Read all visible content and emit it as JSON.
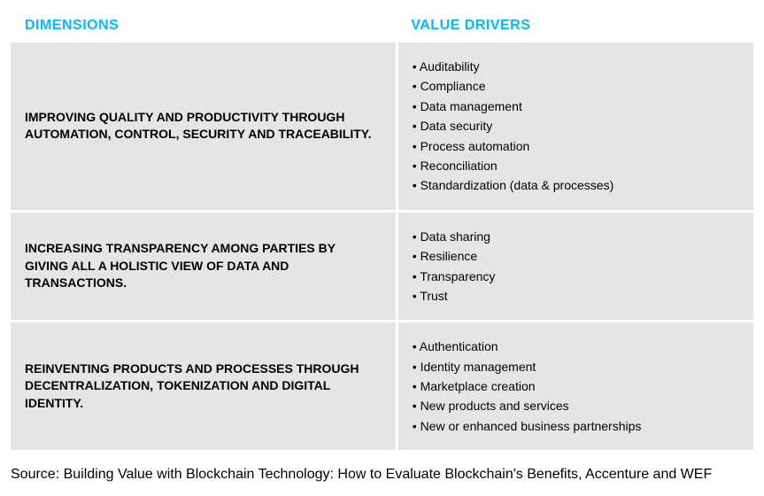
{
  "headers": {
    "col1": "DIMENSIONS",
    "col2": "VALUE DRIVERS",
    "header_color": "#00baff",
    "header_fontsize": 16
  },
  "rows": [
    {
      "dimension": "IMPROVING QUALITY AND PRODUCTIVITY THROUGH AUTOMATION, CONTROL, SECURITY AND TRACEABILITY.",
      "drivers": [
        "Auditability",
        "Compliance",
        "Data management",
        "Data security",
        "Process automation",
        "Reconciliation",
        "Standardization (data & processes)"
      ]
    },
    {
      "dimension": "INCREASING TRANSPARENCY AMONG PARTIES BY GIVING ALL A HOLISTIC VIEW OF DATA AND TRANSACTIONS.",
      "drivers": [
        "Data sharing",
        "Resilience",
        "Transparency",
        "Trust"
      ]
    },
    {
      "dimension": "REINVENTING PRODUCTS AND PROCESSES THROUGH DECENTRALIZATION, TOKENIZATION AND DIGITAL IDENTITY.",
      "drivers": [
        "Authentication",
        "Identity management",
        "Marketplace creation",
        "New products and services",
        "New or enhanced business partnerships"
      ]
    }
  ],
  "styling": {
    "row_background": "#e5e5e5",
    "gap_color": "#ffffff",
    "text_color": "#000000",
    "dim_fontsize": 14,
    "drv_fontsize": 14,
    "body_lineheight": 1.5
  },
  "source": "Source: Building Value with Blockchain Technology: How to Evaluate Blockchain's Benefits, Accenture and WEF"
}
